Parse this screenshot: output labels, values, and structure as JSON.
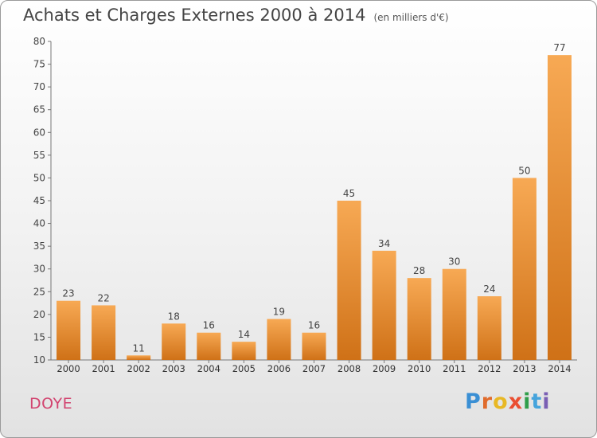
{
  "header": {
    "title": "Achats et Charges Externes 2000 à 2014",
    "unit": "(en milliers d'€)"
  },
  "footer": {
    "place": "DOYE",
    "brand": "Proxiti",
    "brand_colors": [
      "#3a8fd4",
      "#e06b2c",
      "#e8b825",
      "#ea4f32",
      "#2f9e4a",
      "#46a4dc",
      "#7a5fb4"
    ]
  },
  "colors": {
    "bar_light": "#f7a954",
    "bar_dark": "#cf7117"
  },
  "chart_data": {
    "type": "bar",
    "title": "Achats et Charges Externes 2000 à 2014",
    "subtitle": "(en milliers d'€)",
    "categories": [
      "2000",
      "2001",
      "2002",
      "2003",
      "2004",
      "2005",
      "2006",
      "2007",
      "2008",
      "2009",
      "2010",
      "2011",
      "2012",
      "2013",
      "2014"
    ],
    "values": [
      23,
      22,
      11,
      18,
      16,
      14,
      19,
      16,
      45,
      34,
      28,
      30,
      24,
      50,
      77
    ],
    "ylim": [
      10,
      80
    ],
    "yticks": [
      10,
      15,
      20,
      25,
      30,
      35,
      40,
      45,
      50,
      55,
      60,
      65,
      70,
      75,
      80
    ],
    "grid": false,
    "data_labels": true
  }
}
